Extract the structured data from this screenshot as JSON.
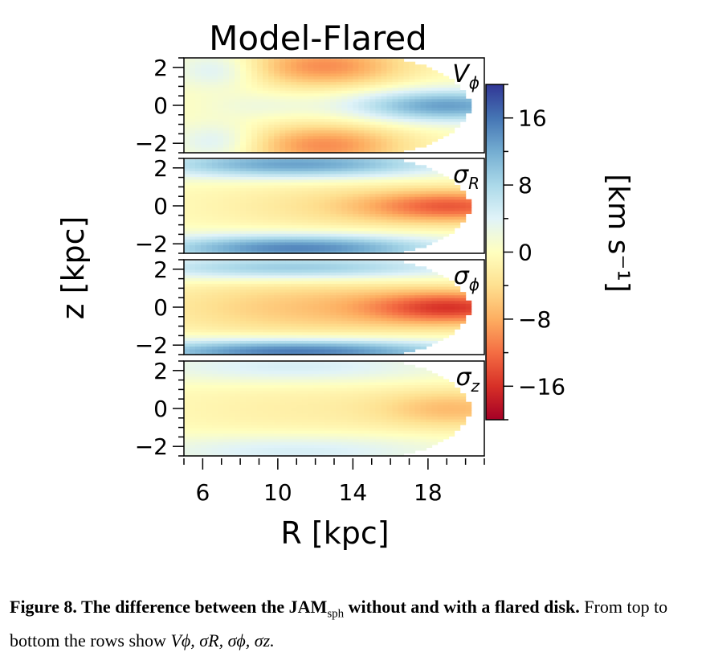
{
  "chart_data": {
    "type": "heatmap",
    "title": "Model-Flared",
    "xlabel": "R [kpc]",
    "ylabel": "z [kpc]",
    "xlim": [
      5,
      21
    ],
    "ylim": [
      -2.5,
      2.5
    ],
    "xticks": [
      "6",
      "10",
      "14",
      "18"
    ],
    "xtick_values": [
      6,
      10,
      14,
      18
    ],
    "yticks": [
      "2",
      "0",
      "−2"
    ],
    "ytick_values": [
      2,
      0,
      -2
    ],
    "panels": [
      {
        "label": "V",
        "label_sub": "ϕ",
        "description_values": {
          "max": 13,
          "min": -12
        },
        "blobs": [
          {
            "R": 6.8,
            "z": 1.9,
            "v": 5,
            "sr": 1.6,
            "sz": 0.7
          },
          {
            "R": 6.8,
            "z": -1.9,
            "v": 5,
            "sr": 1.6,
            "sz": 0.7
          },
          {
            "R": 12.5,
            "z": 2.1,
            "v": -10,
            "sr": 3.0,
            "sz": 0.8
          },
          {
            "R": 12.5,
            "z": -2.1,
            "v": -10,
            "sr": 3.0,
            "sz": 0.8
          },
          {
            "R": 19.0,
            "z": 0.0,
            "v": 13,
            "sr": 3.6,
            "sz": 0.6
          },
          {
            "R": 9.0,
            "z": 0.0,
            "v": 2,
            "sr": 2.0,
            "sz": 0.5
          }
        ]
      },
      {
        "label": "σ",
        "label_sub": "R",
        "description_values": {
          "max": 15,
          "min": -12
        },
        "blobs": [
          {
            "R": 11,
            "z": 2.2,
            "v": 13,
            "sr": 5.5,
            "sz": 0.5
          },
          {
            "R": 11,
            "z": -2.2,
            "v": 15,
            "sr": 5.5,
            "sz": 0.5
          },
          {
            "R": 19.5,
            "z": 0.0,
            "v": -12,
            "sr": 3.5,
            "sz": 0.6
          },
          {
            "R": 13,
            "z": 0.0,
            "v": -3,
            "sr": 5.0,
            "sz": 1.0
          }
        ]
      },
      {
        "label": "σ",
        "label_sub": "ϕ",
        "description_values": {
          "max": 15,
          "min": -13
        },
        "blobs": [
          {
            "R": 11,
            "z": 2.1,
            "v": 10,
            "sr": 6.5,
            "sz": 0.45
          },
          {
            "R": 11,
            "z": -2.3,
            "v": 16,
            "sr": 6.5,
            "sz": 0.45
          },
          {
            "R": 19.5,
            "z": 0.0,
            "v": -13,
            "sr": 3.2,
            "sz": 0.6
          },
          {
            "R": 12,
            "z": 0.0,
            "v": -6,
            "sr": 6.0,
            "sz": 1.1
          }
        ]
      },
      {
        "label": "σ",
        "label_sub": "z",
        "description_values": {
          "max": 5,
          "min": -6
        },
        "blobs": [
          {
            "R": 11,
            "z": 2.2,
            "v": 5,
            "sr": 6.0,
            "sz": 0.6
          },
          {
            "R": 11,
            "z": -2.2,
            "v": 5,
            "sr": 6.0,
            "sz": 0.6
          },
          {
            "R": 19.5,
            "z": 0.0,
            "v": -6,
            "sr": 2.8,
            "sz": 0.7
          },
          {
            "R": 12,
            "z": 0.0,
            "v": -2,
            "sr": 6.0,
            "sz": 1.2
          }
        ]
      }
    ],
    "colorbar": {
      "label": "[km s⁻¹]",
      "colormap": "RdYlBu",
      "vmin": -20,
      "vmax": 20,
      "ticks": [
        "16",
        "8",
        "0",
        "−8",
        "−16"
      ],
      "tick_values": [
        16,
        8,
        0,
        -8,
        -16
      ]
    }
  },
  "caption": {
    "fig_label": "Figure 8.",
    "bold_text_1": " The difference between the JAM",
    "bold_sub": "sph",
    "bold_text_2": " without and with a flared disk.",
    "normal_text": " From top to bottom the rows show ",
    "math": "Vϕ, σR, σϕ, σz."
  }
}
